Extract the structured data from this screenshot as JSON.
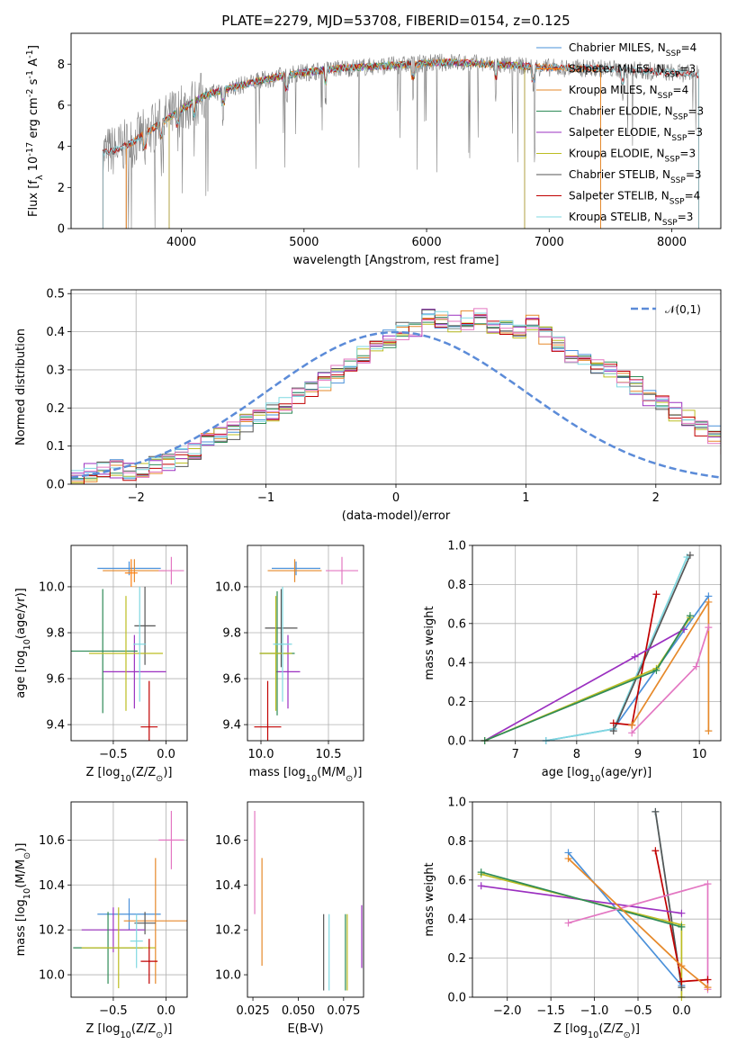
{
  "figure": {
    "title": "PLATE=2279, MJD=53708, FIBERID=0154, z=0.125"
  },
  "chart_data": [
    {
      "id": "spectrum",
      "type": "line",
      "xlabel": "wavelength [Angstrom, rest frame]",
      "ylabel": "Flux [f$_\\lambda$ 10$^{-17}$ erg cm$^{-2}$ s$^{-1}$ A$^{-1}$]",
      "xlim": [
        3100,
        8400
      ],
      "ylim": [
        0,
        9.5
      ],
      "xticks": [
        4000,
        5000,
        6000,
        7000,
        8000
      ],
      "yticks": [
        0,
        2,
        4,
        6,
        8
      ],
      "legend_position": "upper-right",
      "continuum": {
        "x": [
          3360,
          3450,
          3600,
          3800,
          4000,
          4200,
          4500,
          4800,
          5000,
          5300,
          5600,
          5900,
          6200,
          6500,
          6800,
          7100,
          7400,
          7700,
          8000,
          8220
        ],
        "y": [
          3.7,
          3.8,
          4.2,
          5.0,
          5.8,
          6.5,
          7.0,
          7.4,
          7.6,
          7.8,
          7.9,
          8.0,
          8.1,
          8.0,
          7.9,
          7.8,
          7.8,
          7.7,
          7.6,
          7.5
        ]
      },
      "series": [
        {
          "name": "Chabrier MILES, N$_{SSP}$=4",
          "color": "#4a90d9",
          "xmin": 3550,
          "xmax": 7420
        },
        {
          "name": "Salpeter MILES, N$_{SSP}$=3",
          "color": "#ff7f0e",
          "xmin": 3550,
          "xmax": 7420
        },
        {
          "name": "Kroupa MILES, N$_{SSP}$=4",
          "color": "#e6892a",
          "xmin": 3550,
          "xmax": 7420
        },
        {
          "name": "Chabrier ELODIE, N$_{SSP}$=3",
          "color": "#2e8b57",
          "xmin": 3900,
          "xmax": 6800
        },
        {
          "name": "Salpeter ELODIE, N$_{SSP}$=3",
          "color": "#9b30c0",
          "xmin": 3900,
          "xmax": 6800
        },
        {
          "name": "Kroupa ELODIE, N$_{SSP}$=3",
          "color": "#bcbd22",
          "xmin": 3900,
          "xmax": 6800
        },
        {
          "name": "Chabrier STELIB, N$_{SSP}$=3",
          "color": "#555555",
          "xmin": 3360,
          "xmax": 8220
        },
        {
          "name": "Salpeter STELIB, N$_{SSP}$=4",
          "color": "#c00000",
          "xmin": 3360,
          "xmax": 8220
        },
        {
          "name": "Kroupa STELIB, N$_{SSP}$=3",
          "color": "#7fd8e0",
          "xmin": 3360,
          "xmax": 8220
        }
      ],
      "data_color": "#808080"
    },
    {
      "id": "residuals",
      "type": "line",
      "xlabel": "(data-model)/error",
      "ylabel": "Normed distribution",
      "xlim": [
        -2.5,
        2.5
      ],
      "ylim": [
        0,
        0.51
      ],
      "xticks": [
        -2,
        -1,
        0,
        1,
        2
      ],
      "yticks": [
        0.0,
        0.1,
        0.2,
        0.3,
        0.4,
        0.5
      ],
      "grid": true,
      "legend_position": "upper-right",
      "gaussian": {
        "name": "$\\mathcal{N}(0,1)$",
        "color": "#5b8bd8",
        "mu": 0,
        "sigma": 1
      },
      "hist_bin_width": 0.1,
      "hist_values": [
        0.02,
        0.03,
        0.04,
        0.04,
        0.03,
        0.04,
        0.05,
        0.06,
        0.07,
        0.09,
        0.11,
        0.13,
        0.14,
        0.16,
        0.18,
        0.19,
        0.21,
        0.23,
        0.25,
        0.27,
        0.29,
        0.31,
        0.34,
        0.36,
        0.38,
        0.4,
        0.41,
        0.44,
        0.43,
        0.42,
        0.43,
        0.44,
        0.42,
        0.41,
        0.4,
        0.42,
        0.39,
        0.37,
        0.34,
        0.33,
        0.31,
        0.3,
        0.28,
        0.26,
        0.23,
        0.21,
        0.19,
        0.17,
        0.15,
        0.13,
        0.1,
        0.09,
        0.08,
        0.07,
        0.06,
        0.05,
        0.05,
        0.04,
        0.03,
        0.03
      ]
    },
    {
      "id": "age_vs_Z",
      "type": "scatter",
      "xlabel": "Z [log$_{10}$($Z/Z_\\odot$)]",
      "ylabel": "age  [log$_{10}$($age/yr$)]",
      "xlim": [
        -0.9,
        0.2
      ],
      "ylim": [
        9.33,
        10.18
      ],
      "xticks": [
        -0.5,
        0.0
      ],
      "yticks": [
        9.4,
        9.6,
        9.8,
        10.0
      ],
      "grid": true,
      "points": [
        {
          "color": "#4a90d9",
          "x": -0.35,
          "y": 10.08,
          "xerr": 0.3,
          "yerr": 0.03
        },
        {
          "color": "#e6892a",
          "x": -0.3,
          "y": 10.07,
          "xerr": 0.3,
          "yerr": 0.05
        },
        {
          "color": "#e377c2",
          "x": 0.05,
          "y": 10.07,
          "xerr": 0.12,
          "yerr": 0.06
        },
        {
          "color": "#555555",
          "x": -0.2,
          "y": 9.83,
          "xerr": 0.1,
          "yerr": 0.17
        },
        {
          "color": "#9b30c0",
          "x": -0.3,
          "y": 9.63,
          "xerr": 0.3,
          "yerr": 0.16
        },
        {
          "color": "#2e8b57",
          "x": -0.6,
          "y": 9.72,
          "xerr": 0.33,
          "yerr": 0.27
        },
        {
          "color": "#bcbd22",
          "x": -0.38,
          "y": 9.71,
          "xerr": 0.35,
          "yerr": 0.25
        },
        {
          "color": "#7fd8e0",
          "x": -0.25,
          "y": 9.75,
          "xerr": 0.06,
          "yerr": 0.25
        },
        {
          "color": "#c00000",
          "x": -0.16,
          "y": 9.39,
          "xerr": 0.08,
          "yerr": 0.2
        },
        {
          "color": "#ff7f0e",
          "x": -0.33,
          "y": 10.06,
          "xerr": 0.06,
          "yerr": 0.06
        }
      ]
    },
    {
      "id": "age_vs_mass",
      "type": "scatter",
      "xlabel": "mass [log$_{10}$($M/M_\\odot$)]",
      "ylabel": "",
      "xlim": [
        9.9,
        10.76
      ],
      "ylim": [
        9.33,
        10.18
      ],
      "xticks": [
        10.0,
        10.5
      ],
      "yticks": [
        9.4,
        9.6,
        9.8,
        10.0
      ],
      "grid": true,
      "points": [
        {
          "color": "#4a90d9",
          "x": 10.26,
          "y": 10.08,
          "xerr": 0.18,
          "yerr": 0.03
        },
        {
          "color": "#e6892a",
          "x": 10.25,
          "y": 10.07,
          "xerr": 0.2,
          "yerr": 0.05
        },
        {
          "color": "#e377c2",
          "x": 10.6,
          "y": 10.07,
          "xerr": 0.12,
          "yerr": 0.06
        },
        {
          "color": "#555555",
          "x": 10.15,
          "y": 9.82,
          "xerr": 0.12,
          "yerr": 0.17
        },
        {
          "color": "#9b30c0",
          "x": 10.2,
          "y": 9.63,
          "xerr": 0.09,
          "yerr": 0.16
        },
        {
          "color": "#2e8b57",
          "x": 10.12,
          "y": 9.71,
          "xerr": 0.13,
          "yerr": 0.27
        },
        {
          "color": "#bcbd22",
          "x": 10.11,
          "y": 9.71,
          "xerr": 0.12,
          "yerr": 0.25
        },
        {
          "color": "#7fd8e0",
          "x": 10.16,
          "y": 9.75,
          "xerr": 0.07,
          "yerr": 0.25
        },
        {
          "color": "#c00000",
          "x": 10.05,
          "y": 9.39,
          "xerr": 0.1,
          "yerr": 0.2
        }
      ]
    },
    {
      "id": "massweight_vs_age",
      "type": "line",
      "xlabel": "age  [log$_{10}$($age/yr$)]",
      "ylabel": "mass weight",
      "xlim": [
        6.3,
        10.35
      ],
      "ylim": [
        0,
        1.0
      ],
      "xticks": [
        7,
        8,
        9,
        10
      ],
      "yticks": [
        0.0,
        0.2,
        0.4,
        0.6,
        0.8,
        1.0
      ],
      "grid": true,
      "series": [
        {
          "color": "#4a90d9",
          "x": [
            7.5,
            8.6,
            10.15
          ],
          "y": [
            0.0,
            0.06,
            0.74
          ]
        },
        {
          "color": "#7fd8e0",
          "x": [
            7.5,
            8.6,
            9.8
          ],
          "y": [
            0.0,
            0.06,
            0.94
          ]
        },
        {
          "color": "#555555",
          "x": [
            8.6,
            9.85
          ],
          "y": [
            0.05,
            0.95
          ]
        },
        {
          "color": "#c00000",
          "x": [
            8.6,
            8.9,
            9.3
          ],
          "y": [
            0.09,
            0.08,
            0.75
          ]
        },
        {
          "color": "#9b30c0",
          "x": [
            6.5,
            8.95,
            9.75
          ],
          "y": [
            0.0,
            0.43,
            0.57
          ]
        },
        {
          "color": "#bcbd22",
          "x": [
            6.5,
            9.3,
            9.85
          ],
          "y": [
            0.0,
            0.37,
            0.63
          ]
        },
        {
          "color": "#2e8b57",
          "x": [
            6.5,
            9.3,
            9.85
          ],
          "y": [
            0.0,
            0.36,
            0.64
          ]
        },
        {
          "color": "#e377c2",
          "x": [
            8.9,
            9.95,
            10.15
          ],
          "y": [
            0.04,
            0.38,
            0.58
          ]
        },
        {
          "color": "#e6892a",
          "x": [
            8.9,
            10.15,
            10.15
          ],
          "y": [
            0.08,
            0.71,
            0.05
          ]
        }
      ]
    },
    {
      "id": "mass_vs_Z",
      "type": "scatter",
      "xlabel": "Z [log$_{10}$($Z/Z_\\odot$)]",
      "ylabel": "mass [log$_{10}$($M/M_\\odot$)]",
      "xlim": [
        -0.9,
        0.2
      ],
      "ylim": [
        9.9,
        10.77
      ],
      "xticks": [
        -0.5,
        0.0
      ],
      "yticks": [
        10.0,
        10.2,
        10.4,
        10.6
      ],
      "grid": true,
      "points": [
        {
          "color": "#4a90d9",
          "x": -0.35,
          "y": 10.27,
          "xerr": 0.3,
          "yerr": 0.07
        },
        {
          "color": "#e6892a",
          "x": -0.1,
          "y": 10.24,
          "xerr": 0.3,
          "yerr": 0.28
        },
        {
          "color": "#e377c2",
          "x": 0.05,
          "y": 10.6,
          "xerr": 0.12,
          "yerr": 0.13
        },
        {
          "color": "#555555",
          "x": -0.2,
          "y": 10.23,
          "xerr": 0.1,
          "yerr": 0.05
        },
        {
          "color": "#9b30c0",
          "x": -0.5,
          "y": 10.2,
          "xerr": 0.3,
          "yerr": 0.1
        },
        {
          "color": "#2e8b57",
          "x": -0.55,
          "y": 10.12,
          "xerr": 0.33,
          "yerr": 0.16
        },
        {
          "color": "#bcbd22",
          "x": -0.45,
          "y": 10.12,
          "xerr": 0.35,
          "yerr": 0.18
        },
        {
          "color": "#7fd8e0",
          "x": -0.28,
          "y": 10.15,
          "xerr": 0.06,
          "yerr": 0.12
        },
        {
          "color": "#c00000",
          "x": -0.16,
          "y": 10.06,
          "xerr": 0.08,
          "yerr": 0.1
        }
      ]
    },
    {
      "id": "mass_vs_ebv",
      "type": "scatter",
      "xlabel": "E(B-V)",
      "ylabel": "",
      "xlim": [
        0.022,
        0.086
      ],
      "ylim": [
        9.9,
        10.77
      ],
      "xticks": [
        0.025,
        0.05,
        0.075
      ],
      "xticklabels": [
        "0.025",
        "0.050",
        "0.075"
      ],
      "yticks": [
        10.0,
        10.2,
        10.4,
        10.6
      ],
      "points": [
        {
          "color": "#e377c2",
          "x": 0.026,
          "y": 10.5,
          "yerr": 0.23
        },
        {
          "color": "#e6892a",
          "x": 0.03,
          "y": 10.28,
          "yerr": 0.24
        },
        {
          "color": "#555555",
          "x": 0.064,
          "y": 10.1,
          "yerr": 0.17
        },
        {
          "color": "#7fd8e0",
          "x": 0.067,
          "y": 10.1,
          "yerr": 0.17
        },
        {
          "color": "#2e8b57",
          "x": 0.076,
          "y": 10.1,
          "yerr": 0.17
        },
        {
          "color": "#bcbd22",
          "x": 0.077,
          "y": 10.1,
          "yerr": 0.17
        },
        {
          "color": "#9b30c0",
          "x": 0.085,
          "y": 10.17,
          "yerr": 0.14
        }
      ]
    },
    {
      "id": "massweight_vs_Z",
      "type": "line",
      "xlabel": "Z [log$_{10}$($Z/Z_\\odot$)]",
      "ylabel": "mass weight",
      "xlim": [
        -2.4,
        0.45
      ],
      "ylim": [
        0,
        1.0
      ],
      "xticks": [
        -2.0,
        -1.5,
        -1.0,
        -0.5,
        0.0
      ],
      "yticks": [
        0.0,
        0.2,
        0.4,
        0.6,
        0.8,
        1.0
      ],
      "grid": true,
      "series": [
        {
          "color": "#4a90d9",
          "x": [
            -1.3,
            0.0
          ],
          "y": [
            0.74,
            0.06
          ]
        },
        {
          "color": "#7fd8e0",
          "x": [
            -0.3,
            0.0
          ],
          "y": [
            0.95,
            0.05
          ]
        },
        {
          "color": "#555555",
          "x": [
            -0.3,
            0.0
          ],
          "y": [
            0.95,
            0.05
          ]
        },
        {
          "color": "#c00000",
          "x": [
            -0.3,
            0.0,
            0.3
          ],
          "y": [
            0.75,
            0.08,
            0.09
          ]
        },
        {
          "color": "#9b30c0",
          "x": [
            -2.3,
            0.0
          ],
          "y": [
            0.57,
            0.43
          ]
        },
        {
          "color": "#bcbd22",
          "x": [
            -2.3,
            0.0,
            0.0
          ],
          "y": [
            0.63,
            0.37,
            0.0
          ]
        },
        {
          "color": "#2e8b57",
          "x": [
            -2.3,
            0.0
          ],
          "y": [
            0.64,
            0.36
          ]
        },
        {
          "color": "#e377c2",
          "x": [
            -1.3,
            0.3,
            0.3
          ],
          "y": [
            0.38,
            0.58,
            0.04
          ]
        },
        {
          "color": "#e6892a",
          "x": [
            -1.3,
            0.0,
            0.3
          ],
          "y": [
            0.71,
            0.16,
            0.05
          ]
        }
      ]
    }
  ]
}
